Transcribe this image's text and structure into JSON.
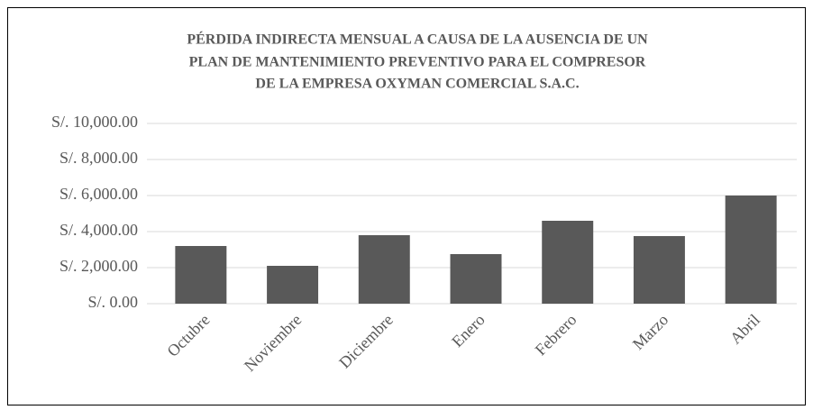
{
  "chart_data": {
    "type": "bar",
    "title_lines": [
      "PÉRDIDA INDIRECTA MENSUAL A CAUSA DE LA AUSENCIA DE UN",
      "PLAN DE MANTENIMIENTO PREVENTIVO PARA EL COMPRESOR",
      "DE LA EMPRESA OXYMAN COMERCIAL S.A.C."
    ],
    "categories": [
      "Octubre",
      "Noviembre",
      "Diciembre",
      "Enero",
      "Febrero",
      "Marzo",
      "Abril"
    ],
    "values": [
      3200,
      2100,
      3800,
      2750,
      4600,
      3750,
      6000
    ],
    "color": "#595959",
    "ylim": [
      0,
      10000
    ],
    "yticks": [
      {
        "value": 0,
        "label": "S/. 0.00"
      },
      {
        "value": 2000,
        "label": "S/. 2,000.00"
      },
      {
        "value": 4000,
        "label": "S/. 4,000.00"
      },
      {
        "value": 6000,
        "label": "S/. 6,000.00"
      },
      {
        "value": 8000,
        "label": "S/. 8,000.00"
      },
      {
        "value": 10000,
        "label": "S/. 10,000.00"
      }
    ],
    "grid": true
  }
}
